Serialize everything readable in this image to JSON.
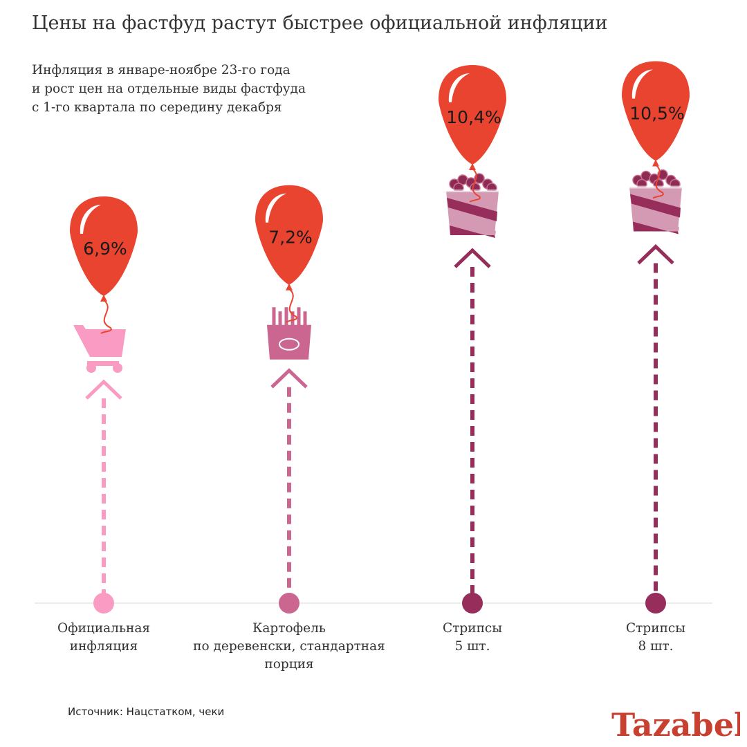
{
  "header": {
    "title": "Цены на фастфуд растут быстрее официальной инфляции",
    "subtitle_lines": [
      "Инфляция в январе-ноябре 23-го года",
      "и рост цен на отдельные виды фастфуда",
      "с 1-го квартала по середину декабря"
    ]
  },
  "chart_data": {
    "type": "bar",
    "unit": "%",
    "categories": [
      "Официальная инфляция",
      "Картофель по деревенски, стандартная порция",
      "Стрипсы 5 шт.",
      "Стрипсы 8 шт."
    ],
    "values": [
      6.9,
      7.2,
      10.4,
      10.5
    ],
    "value_labels": [
      "6,9%",
      "7,2%",
      "10,4%",
      "10,5%"
    ],
    "category_label_lines": [
      [
        "Официальная",
        "инфляция"
      ],
      [
        "Картофель",
        "по деревенски, стандартная",
        "порция"
      ],
      [
        "Стрипсы",
        "5 шт."
      ],
      [
        "Стрипсы",
        "8 шт."
      ]
    ],
    "icons": [
      "shopping-cart-icon",
      "french-fries-icon",
      "strips-bucket-icon",
      "strips-bucket-icon"
    ],
    "colors": [
      "#f99bc3",
      "#cb6690",
      "#962d5b",
      "#962d5b"
    ],
    "balloon_color": "#e94430",
    "baseline_color": "#e5e5e5"
  },
  "footer": {
    "source": "Источник: Нацстатком, чеки",
    "logo_text": "Tazabek"
  }
}
